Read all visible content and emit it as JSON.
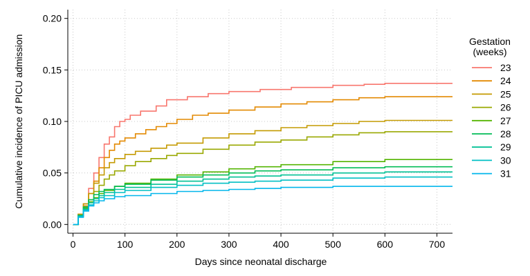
{
  "chart_data": {
    "type": "line",
    "step": true,
    "xlabel": "Days since neonatal discharge",
    "ylabel": "Cumulative incidence of PICU admission",
    "xlim": [
      0,
      730
    ],
    "ylim": [
      0,
      0.2
    ],
    "xticks": [
      0,
      100,
      200,
      300,
      400,
      500,
      600,
      700
    ],
    "yticks": [
      0,
      0.05,
      0.1,
      0.15,
      0.2
    ],
    "ytick_labels": [
      "0.00",
      "0.05",
      "0.10",
      "0.15",
      "0.20"
    ],
    "grid": "dotted",
    "legend": {
      "title_line1": "Gestation",
      "title_line2": "(weeks)",
      "position": "right"
    },
    "series": [
      {
        "name": "23",
        "color": "#F8766D",
        "x": [
          0,
          10,
          20,
          30,
          40,
          50,
          60,
          70,
          80,
          90,
          100,
          110,
          130,
          160,
          180,
          220,
          260,
          300,
          360,
          420,
          500,
          560,
          600,
          730
        ],
        "y": [
          0,
          0.01,
          0.02,
          0.035,
          0.05,
          0.065,
          0.078,
          0.085,
          0.095,
          0.1,
          0.102,
          0.106,
          0.11,
          0.115,
          0.121,
          0.124,
          0.127,
          0.129,
          0.131,
          0.133,
          0.135,
          0.136,
          0.137,
          0.137
        ]
      },
      {
        "name": "24",
        "color": "#E38900",
        "x": [
          0,
          10,
          20,
          30,
          40,
          50,
          60,
          70,
          80,
          90,
          100,
          120,
          140,
          160,
          180,
          200,
          230,
          260,
          300,
          350,
          400,
          450,
          500,
          550,
          600,
          730
        ],
        "y": [
          0,
          0.008,
          0.018,
          0.03,
          0.042,
          0.055,
          0.065,
          0.072,
          0.078,
          0.081,
          0.084,
          0.088,
          0.092,
          0.095,
          0.098,
          0.102,
          0.106,
          0.108,
          0.111,
          0.114,
          0.117,
          0.119,
          0.121,
          0.123,
          0.124,
          0.124
        ]
      },
      {
        "name": "25",
        "color": "#C49A00",
        "x": [
          0,
          10,
          20,
          30,
          40,
          50,
          60,
          70,
          80,
          100,
          120,
          150,
          180,
          200,
          250,
          300,
          350,
          400,
          450,
          500,
          550,
          600,
          730
        ],
        "y": [
          0,
          0.01,
          0.02,
          0.03,
          0.04,
          0.048,
          0.055,
          0.06,
          0.064,
          0.068,
          0.071,
          0.074,
          0.077,
          0.079,
          0.084,
          0.088,
          0.091,
          0.094,
          0.096,
          0.098,
          0.1,
          0.101,
          0.101
        ]
      },
      {
        "name": "26",
        "color": "#99A800",
        "x": [
          0,
          10,
          20,
          30,
          40,
          50,
          60,
          70,
          80,
          100,
          120,
          150,
          180,
          200,
          250,
          300,
          350,
          400,
          450,
          500,
          550,
          600,
          730
        ],
        "y": [
          0,
          0.008,
          0.015,
          0.024,
          0.032,
          0.038,
          0.044,
          0.048,
          0.052,
          0.057,
          0.061,
          0.064,
          0.067,
          0.069,
          0.073,
          0.077,
          0.08,
          0.082,
          0.085,
          0.087,
          0.089,
          0.09,
          0.09
        ]
      },
      {
        "name": "27",
        "color": "#53B400",
        "x": [
          0,
          10,
          20,
          30,
          40,
          50,
          60,
          80,
          100,
          150,
          200,
          250,
          300,
          350,
          400,
          500,
          600,
          730
        ],
        "y": [
          0,
          0.008,
          0.016,
          0.022,
          0.026,
          0.03,
          0.033,
          0.037,
          0.04,
          0.044,
          0.048,
          0.051,
          0.054,
          0.056,
          0.058,
          0.061,
          0.063,
          0.063
        ]
      },
      {
        "name": "28",
        "color": "#00BC56",
        "x": [
          0,
          10,
          20,
          30,
          40,
          50,
          60,
          80,
          100,
          150,
          200,
          250,
          300,
          350,
          400,
          500,
          600,
          730
        ],
        "y": [
          0,
          0.009,
          0.017,
          0.024,
          0.029,
          0.032,
          0.034,
          0.037,
          0.039,
          0.043,
          0.046,
          0.048,
          0.05,
          0.052,
          0.053,
          0.055,
          0.056,
          0.056
        ]
      },
      {
        "name": "29",
        "color": "#00C094",
        "x": [
          0,
          10,
          20,
          30,
          40,
          50,
          60,
          80,
          100,
          150,
          200,
          250,
          300,
          350,
          400,
          500,
          600,
          730
        ],
        "y": [
          0,
          0.008,
          0.015,
          0.021,
          0.025,
          0.028,
          0.031,
          0.034,
          0.036,
          0.039,
          0.042,
          0.044,
          0.046,
          0.047,
          0.048,
          0.05,
          0.051,
          0.051
        ]
      },
      {
        "name": "30",
        "color": "#00BFC4",
        "x": [
          0,
          10,
          20,
          30,
          40,
          50,
          60,
          80,
          100,
          150,
          200,
          250,
          300,
          350,
          400,
          500,
          600,
          730
        ],
        "y": [
          0,
          0.008,
          0.014,
          0.019,
          0.023,
          0.026,
          0.028,
          0.031,
          0.033,
          0.036,
          0.038,
          0.04,
          0.041,
          0.042,
          0.043,
          0.045,
          0.046,
          0.046
        ]
      },
      {
        "name": "31",
        "color": "#00B6EB",
        "x": [
          0,
          10,
          20,
          30,
          40,
          50,
          60,
          80,
          100,
          150,
          200,
          250,
          300,
          350,
          400,
          500,
          600,
          730
        ],
        "y": [
          0,
          0.007,
          0.013,
          0.018,
          0.021,
          0.023,
          0.025,
          0.027,
          0.028,
          0.03,
          0.032,
          0.033,
          0.034,
          0.035,
          0.036,
          0.037,
          0.037,
          0.037
        ]
      }
    ]
  }
}
